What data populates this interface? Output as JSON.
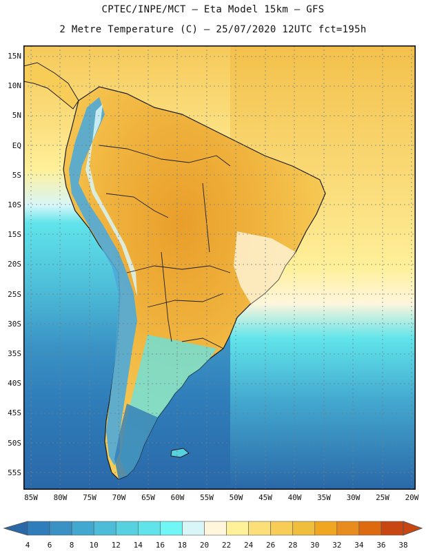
{
  "header": {
    "title_line1": "CPTEC/INPE/MCT –  Eta Model 15km – GFS",
    "title_line2": "2 Metre Temperature (C) – 25/07/2020 12UTC fct=195h"
  },
  "map": {
    "lat_labels": [
      "15N",
      "10N",
      "5N",
      "EQ",
      "5S",
      "10S",
      "15S",
      "20S",
      "25S",
      "30S",
      "35S",
      "40S",
      "45S",
      "50S",
      "55S"
    ],
    "lon_labels": [
      "85W",
      "80W",
      "75W",
      "70W",
      "65W",
      "60W",
      "55W",
      "50W",
      "45W",
      "40W",
      "35W",
      "30W",
      "25W",
      "20W"
    ]
  },
  "colorbar": {
    "labels": [
      "4",
      "6",
      "8",
      "10",
      "12",
      "14",
      "16",
      "18",
      "20",
      "22",
      "24",
      "26",
      "28",
      "30",
      "32",
      "34",
      "36",
      "38"
    ],
    "colors": [
      "#2a68a8",
      "#2f7dba",
      "#3a92c4",
      "#43a8cf",
      "#4dbcd8",
      "#57d0e0",
      "#60e4ea",
      "#6ff6f5",
      "#d8f6f8",
      "#fff6dc",
      "#fff09a",
      "#fbe07a",
      "#f7cd58",
      "#eebe3c",
      "#f0a620",
      "#e98c20",
      "#de6a10",
      "#c84612"
    ]
  },
  "colors": {
    "ocean_warm": "#fbdf7f",
    "ocean_mid": "#57d0e0",
    "ocean_cold": "#2a68a8",
    "land_hot": "#eea930",
    "andes": "#4faad8"
  }
}
